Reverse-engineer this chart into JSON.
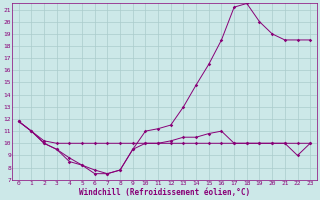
{
  "xlabel": "Windchill (Refroidissement éolien,°C)",
  "bg_color": "#cce8e8",
  "grid_color": "#aacccc",
  "line_color": "#880077",
  "xlim": [
    -0.5,
    23.5
  ],
  "ylim": [
    7,
    21.5
  ],
  "xticks": [
    0,
    1,
    2,
    3,
    4,
    5,
    6,
    7,
    8,
    9,
    10,
    11,
    12,
    13,
    14,
    15,
    16,
    17,
    18,
    19,
    20,
    21,
    22,
    23
  ],
  "yticks": [
    7,
    8,
    9,
    10,
    11,
    12,
    13,
    14,
    15,
    16,
    17,
    18,
    19,
    20,
    21
  ],
  "curve1_x": [
    0,
    1,
    2,
    3,
    4,
    5,
    6,
    7,
    8,
    9,
    10,
    11,
    12,
    13,
    14,
    15,
    16,
    17,
    18,
    19,
    20,
    21,
    22,
    23
  ],
  "curve1_y": [
    11.8,
    11.0,
    10.2,
    10.0,
    10.0,
    10.0,
    10.0,
    10.0,
    10.0,
    10.0,
    10.0,
    10.0,
    10.0,
    10.0,
    10.0,
    10.0,
    10.0,
    10.0,
    10.0,
    10.0,
    10.0,
    10.0,
    10.0,
    10.0
  ],
  "curve2_x": [
    0,
    1,
    2,
    3,
    4,
    5,
    6,
    7,
    8,
    9,
    10,
    11,
    12,
    13,
    14,
    15,
    16,
    17,
    18,
    19,
    20,
    21,
    22,
    23
  ],
  "curve2_y": [
    11.8,
    11.0,
    10.0,
    9.5,
    8.8,
    8.2,
    7.5,
    7.5,
    7.8,
    9.5,
    10.0,
    10.0,
    10.2,
    10.5,
    10.5,
    10.8,
    11.0,
    10.0,
    10.0,
    10.0,
    10.0,
    10.0,
    9.0,
    10.0
  ],
  "curve3_x": [
    0,
    1,
    2,
    3,
    4,
    5,
    6,
    7,
    8,
    9,
    10,
    11,
    12,
    13,
    14,
    15,
    16,
    17,
    18,
    19,
    20,
    21,
    22,
    23
  ],
  "curve3_y": [
    11.8,
    11.0,
    10.0,
    9.5,
    8.5,
    8.2,
    7.8,
    7.5,
    7.8,
    9.5,
    11.0,
    11.2,
    11.5,
    13.0,
    14.8,
    16.5,
    18.5,
    21.2,
    21.5,
    20.0,
    19.0,
    18.5,
    18.5,
    18.5
  ]
}
